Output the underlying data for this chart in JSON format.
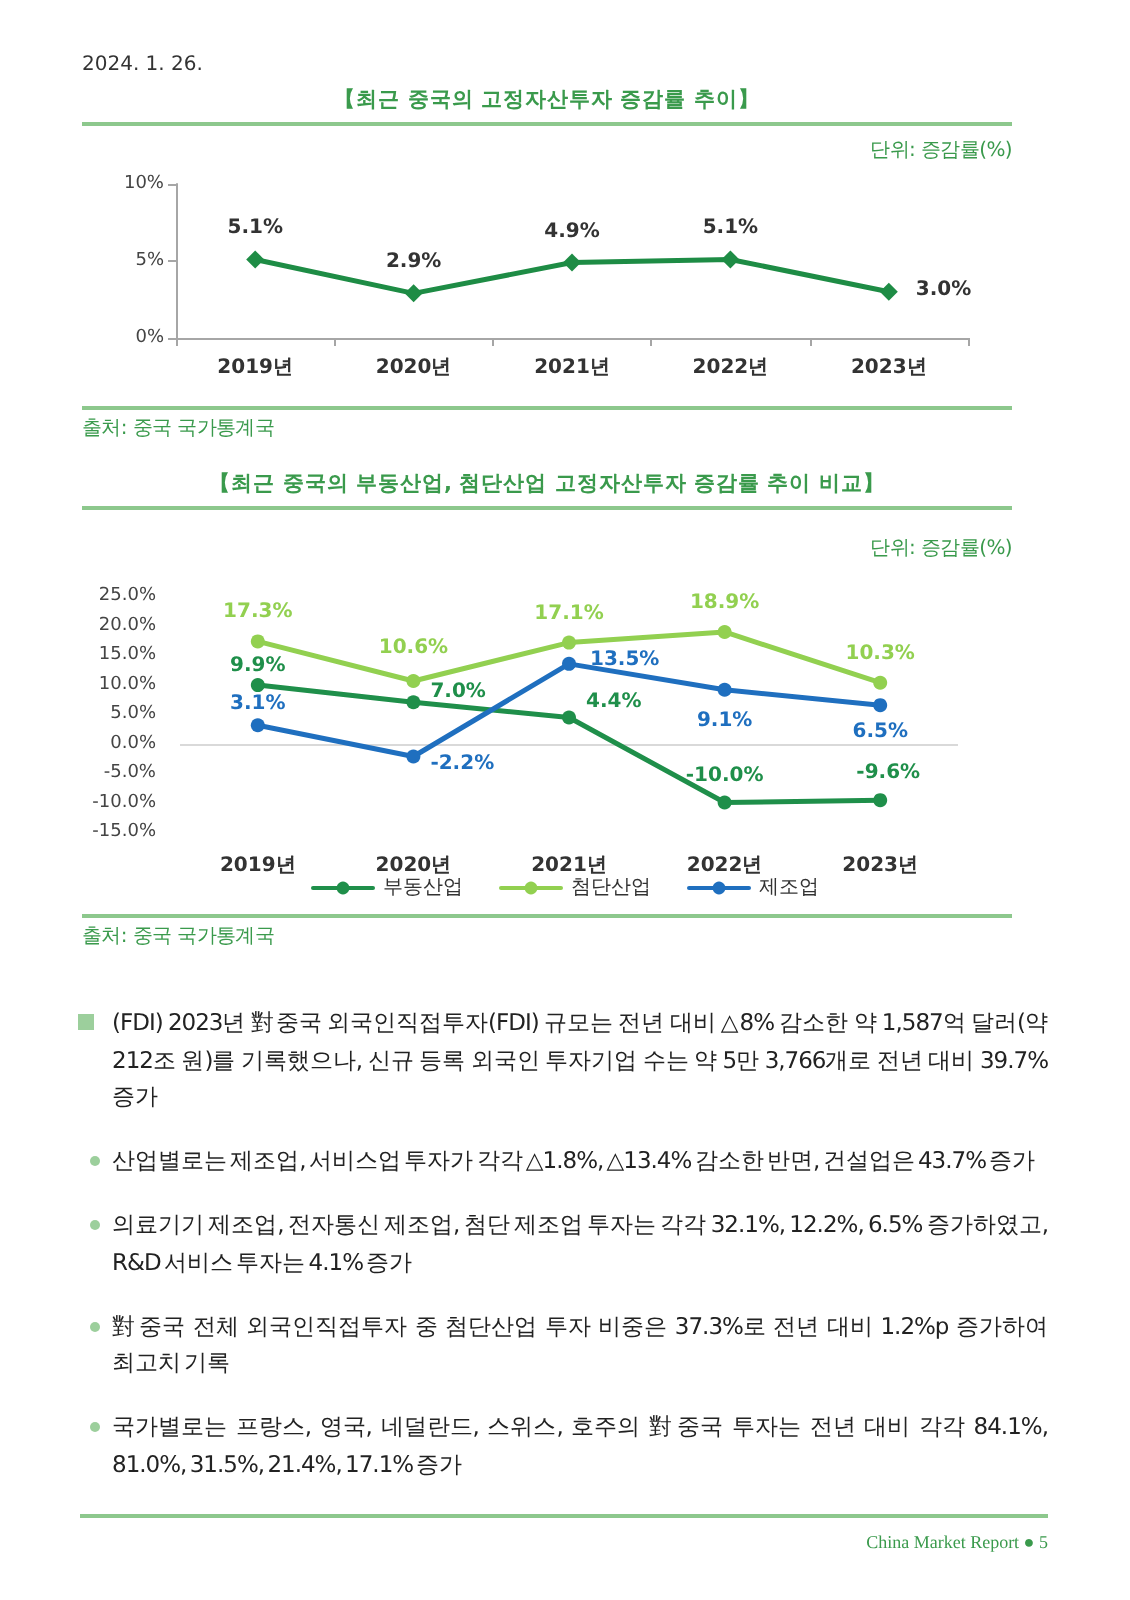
{
  "chart_data": [
    {
      "type": "other",
      "annotations": [
        "2024. 1. 26."
      ]
    },
    {
      "type": "line",
      "title": "【최근 중국의 고정자산투자 증감률 추이】",
      "ylabel": "단위: 증감률(%)",
      "categories": [
        "2019년",
        "2020년",
        "2021년",
        "2022년",
        "2023년"
      ],
      "values": [
        5.1,
        2.9,
        4.9,
        5.1,
        3.0
      ],
      "value_labels": [
        "5.1%",
        "2.9%",
        "4.9%",
        "5.1%",
        "3.0%"
      ],
      "color": "#1e8c45",
      "ylim": [
        0,
        10
      ],
      "yticks": [
        {
          "value": 0,
          "label": "0%"
        },
        {
          "value": 5,
          "label": "5%"
        },
        {
          "value": 10,
          "label": "10%"
        }
      ],
      "grid": false,
      "marker": "diamond",
      "annotations": [
        "출처: 중국 국가통계국"
      ]
    },
    {
      "type": "line",
      "title": "【최근 중국의 부동산업, 첨단산업 고정자산투자 증감률 추이 비교】",
      "ylabel": "단위: 증감률(%)",
      "categories": [
        "2019년",
        "2020년",
        "2021년",
        "2022년",
        "2023년"
      ],
      "series": [
        {
          "name": "부동산업",
          "color": "#1f8f4a",
          "values": [
            9.9,
            7.0,
            4.4,
            -10.0,
            -9.6
          ],
          "value_labels": [
            "9.9%",
            "7.0%",
            "4.4%",
            "-10.0%",
            "-9.6%"
          ]
        },
        {
          "name": "첨단산업",
          "color": "#92d050",
          "values": [
            17.3,
            10.6,
            17.1,
            18.9,
            10.3
          ],
          "value_labels": [
            "17.3%",
            "10.6%",
            "17.1%",
            "18.9%",
            "10.3%"
          ]
        },
        {
          "name": "제조업",
          "color": "#1f6fbf",
          "values": [
            3.1,
            -2.2,
            13.5,
            9.1,
            6.5
          ],
          "value_labels": [
            "3.1%",
            "-2.2%",
            "13.5%",
            "9.1%",
            "6.5%"
          ]
        }
      ],
      "ylim": [
        -15,
        25
      ],
      "yticks": [
        {
          "value": -15,
          "label": "-15.0%"
        },
        {
          "value": -10,
          "label": "-10.0%"
        },
        {
          "value": -5,
          "label": "-5.0%"
        },
        {
          "value": 0,
          "label": "0.0%"
        },
        {
          "value": 5,
          "label": "5.0%"
        },
        {
          "value": 10,
          "label": "10.0%"
        },
        {
          "value": 15,
          "label": "15.0%"
        },
        {
          "value": 20,
          "label": "20.0%"
        },
        {
          "value": 25,
          "label": "25.0%"
        }
      ],
      "grid": false,
      "ref_lines": [
        {
          "axis": "y",
          "value": 0,
          "color": "#d9d9d9"
        }
      ],
      "marker": "circle",
      "legend": "bottom",
      "annotations": [
        "출처: 중국 국가통계국"
      ]
    },
    {
      "type": "other",
      "annotations": [
        "(FDI) 2023년 對중국 외국인직접투자(FDI) 규모는 전년 대비 △8% 감소한 약 1,587억 달러(약 212조 원)를 기록했으나, 신규 등록 외국인 투자기업 수는 약 5만 3,766개로 전년 대비 39.7% 증가",
        "산업별로는 제조업, 서비스업 투자가 각각 △1.8%, △13.4% 감소한 반면, 건설업은 43.7% 증가",
        "의료기기 제조업, 전자통신 제조업, 첨단 제조업 투자는 각각 32.1%, 12.2%, 6.5% 증가하였고, R&D 서비스 투자는 4.1% 증가",
        "對중국 전체 외국인직접투자 중 첨단산업 투자 비중은 37.3%로 전년 대비 1.2%p 증가하여 최고치 기록",
        "국가별로는 프랑스, 영국, 네덜란드, 스위스, 호주의 對중국 투자는 전년 대비 각각 84.1%, 81.0%, 31.5%, 21.4%, 17.1% 증가"
      ]
    },
    {
      "type": "other",
      "annotations": [
        "China Market Report ● 5"
      ]
    }
  ]
}
